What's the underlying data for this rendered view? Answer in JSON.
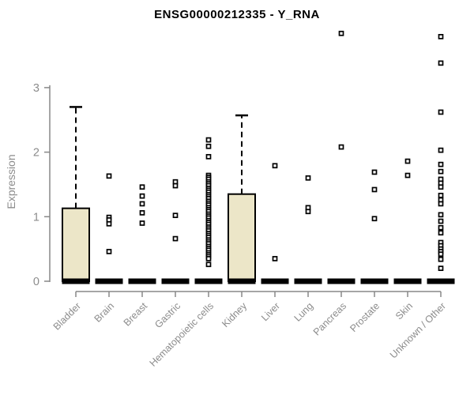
{
  "chart": {
    "title": "ENSG00000212335 - Y_RNA",
    "ylabel": "Expression"
  },
  "chart_data": {
    "type": "box",
    "title": "ENSG00000212335 - Y_RNA",
    "xlabel": "",
    "ylabel": "Expression",
    "y_ticks": [
      0,
      1,
      2,
      3
    ],
    "ylim": [
      0,
      3.9
    ],
    "grid": false,
    "legend": false,
    "categories": [
      "Bladder",
      "Brain",
      "Breast",
      "Gastric",
      "Hematopoietic cells",
      "Kidney",
      "Liver",
      "Lung",
      "Pancreas",
      "Prostate",
      "Skin",
      "Unknown / Other"
    ],
    "boxes": [
      {
        "category": "Bladder",
        "median": 0,
        "q1": 0,
        "q3": 1.13,
        "whisker_low": 0,
        "whisker_high": 2.7,
        "outliers": []
      },
      {
        "category": "Brain",
        "median": 0,
        "q1": 0,
        "q3": 0,
        "whisker_low": 0,
        "whisker_high": 0,
        "outliers": [
          1.63,
          0.99,
          0.95,
          0.89,
          0.46
        ]
      },
      {
        "category": "Breast",
        "median": 0,
        "q1": 0,
        "q3": 0,
        "whisker_low": 0,
        "whisker_high": 0,
        "outliers": [
          1.46,
          1.32,
          1.2,
          1.06,
          0.9
        ]
      },
      {
        "category": "Gastric",
        "median": 0,
        "q1": 0,
        "q3": 0,
        "whisker_low": 0,
        "whisker_high": 0,
        "outliers": [
          1.54,
          1.48,
          1.02,
          0.66
        ]
      },
      {
        "category": "Hematopoietic cells",
        "median": 0,
        "q1": 0,
        "q3": 0,
        "whisker_low": 0,
        "whisker_high": 0,
        "outliers": [
          2.19,
          2.09,
          1.93,
          1.64,
          1.61,
          1.58,
          1.54,
          1.51,
          1.48,
          1.44,
          1.41,
          1.38,
          1.34,
          1.31,
          1.28,
          1.24,
          1.21,
          1.18,
          1.14,
          1.11,
          1.08,
          1.04,
          1.01,
          0.98,
          0.94,
          0.91,
          0.88,
          0.84,
          0.81,
          0.78,
          0.74,
          0.71,
          0.68,
          0.64,
          0.61,
          0.58,
          0.54,
          0.51,
          0.48,
          0.44,
          0.41,
          0.38,
          0.35,
          0.26
        ]
      },
      {
        "category": "Kidney",
        "median": 0,
        "q1": 0,
        "q3": 1.35,
        "whisker_low": 0,
        "whisker_high": 2.57,
        "outliers": []
      },
      {
        "category": "Liver",
        "median": 0,
        "q1": 0,
        "q3": 0,
        "whisker_low": 0,
        "whisker_high": 0,
        "outliers": [
          1.79,
          0.35
        ]
      },
      {
        "category": "Lung",
        "median": 0,
        "q1": 0,
        "q3": 0,
        "whisker_low": 0,
        "whisker_high": 0,
        "outliers": [
          1.6,
          1.14,
          1.08
        ]
      },
      {
        "category": "Pancreas",
        "median": 0,
        "q1": 0,
        "q3": 0,
        "whisker_low": 0,
        "whisker_high": 0,
        "outliers": [
          3.84,
          2.08
        ]
      },
      {
        "category": "Prostate",
        "median": 0,
        "q1": 0,
        "q3": 0,
        "whisker_low": 0,
        "whisker_high": 0,
        "outliers": [
          1.69,
          1.42,
          0.97
        ]
      },
      {
        "category": "Skin",
        "median": 0,
        "q1": 0,
        "q3": 0,
        "whisker_low": 0,
        "whisker_high": 0,
        "outliers": [
          1.86,
          1.64
        ]
      },
      {
        "category": "Unknown / Other",
        "median": 0,
        "q1": 0,
        "q3": 0,
        "whisker_low": 0,
        "whisker_high": 0,
        "outliers": [
          3.79,
          3.38,
          2.62,
          2.03,
          1.81,
          1.7,
          1.58,
          1.52,
          1.46,
          1.33,
          1.26,
          1.2,
          1.03,
          0.93,
          0.83,
          0.75,
          0.6,
          0.55,
          0.5,
          0.46,
          0.42,
          0.34,
          0.2
        ]
      }
    ],
    "styles": {
      "box_fill": "#ECE6C8",
      "box_stroke": "#000000",
      "median_color": "#000000",
      "whisker_color": "#000000",
      "outlier_fill": "#ffffff",
      "outlier_stroke": "#000000",
      "axis_color": "#888888",
      "label_color": "#8c8c8c",
      "title_color": "#000000"
    }
  }
}
